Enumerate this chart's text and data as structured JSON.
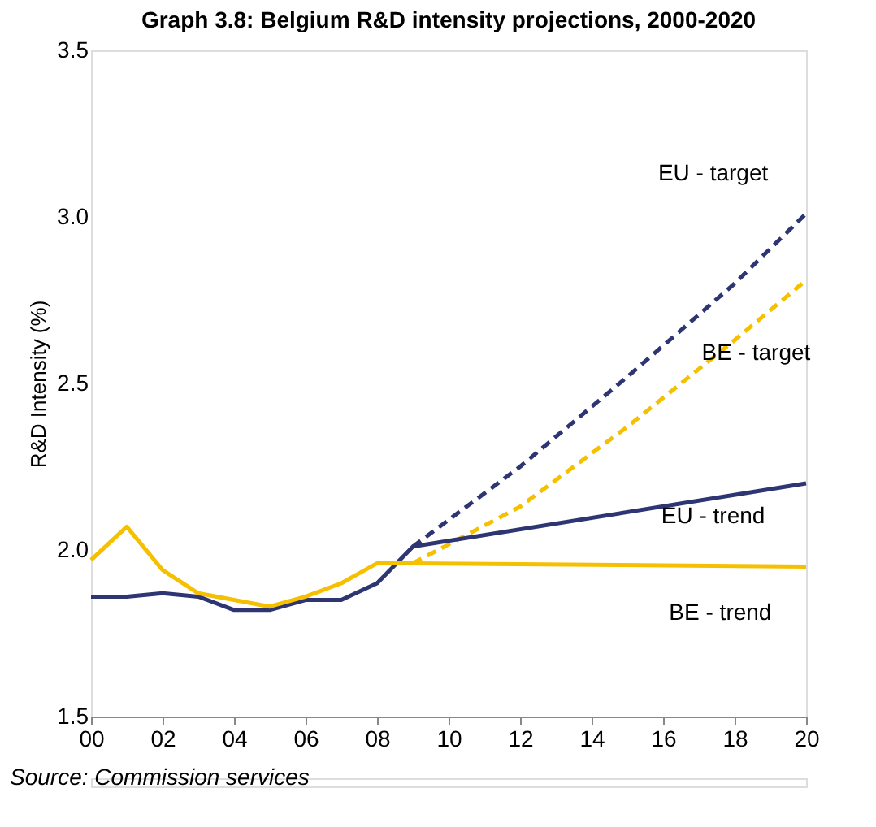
{
  "chart_data": {
    "type": "line",
    "title": "Graph 3.8: Belgium R&D intensity projections, 2000-2020",
    "ylabel": "R&D Intensity (%)",
    "ylim": [
      1.5,
      3.5
    ],
    "yticks": [
      1.5,
      {
        "value": 2,
        "label": "2.0"
      },
      2.5,
      {
        "value": 3,
        "label": "3.0"
      },
      3.5
    ],
    "xlim": [
      2000,
      2020
    ],
    "xticks": [
      {
        "value": 2000,
        "label": "00"
      },
      {
        "value": 2002,
        "label": "02"
      },
      {
        "value": 2004,
        "label": "04"
      },
      {
        "value": 2006,
        "label": "06"
      },
      {
        "value": 2008,
        "label": "08"
      },
      {
        "value": 2010,
        "label": "10"
      },
      {
        "value": 2012,
        "label": "12"
      },
      {
        "value": 2014,
        "label": "14"
      },
      {
        "value": 2016,
        "label": "16"
      },
      {
        "value": 2018,
        "label": "18"
      },
      {
        "value": 2020,
        "label": "20"
      }
    ],
    "grid": false,
    "series": [
      {
        "name": "EU - target",
        "color": "#2e3573",
        "line_style": "dashed",
        "x": [
          2009,
          2012,
          2015,
          2018,
          2020
        ],
        "values": [
          2.01,
          2.25,
          2.52,
          2.8,
          3.01
        ]
      },
      {
        "name": "BE - target",
        "color": "#f5c000",
        "line_style": "dashed",
        "x": [
          2009,
          2012,
          2015,
          2018,
          2020
        ],
        "values": [
          1.96,
          2.13,
          2.37,
          2.63,
          2.81
        ]
      },
      {
        "name": "EU - trend",
        "color": "#2e3573",
        "line_style": "solid",
        "x": [
          2000,
          2001,
          2002,
          2003,
          2004,
          2005,
          2006,
          2007,
          2008,
          2009,
          2020
        ],
        "values": [
          1.86,
          1.86,
          1.87,
          1.86,
          1.82,
          1.82,
          1.85,
          1.85,
          1.9,
          2.01,
          2.2
        ]
      },
      {
        "name": "BE - trend",
        "color": "#f5c000",
        "line_style": "solid",
        "x": [
          2000,
          2001,
          2002,
          2003,
          2004,
          2005,
          2006,
          2007,
          2008,
          2009,
          2020
        ],
        "values": [
          1.97,
          2.07,
          1.94,
          1.87,
          1.85,
          1.83,
          1.86,
          1.9,
          1.96,
          1.96,
          1.95
        ]
      }
    ],
    "annotations": [
      "Source: Commission services"
    ]
  }
}
